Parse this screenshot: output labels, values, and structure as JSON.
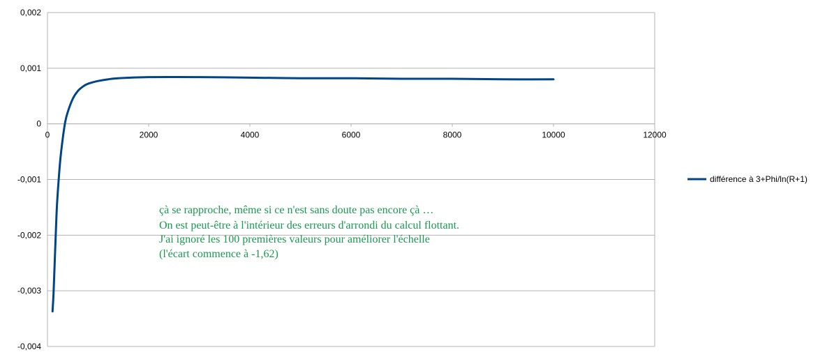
{
  "chart_data": {
    "type": "line",
    "title": "",
    "xlabel": "",
    "ylabel": "",
    "xlim": [
      0,
      12000
    ],
    "ylim": [
      -0.004,
      0.002
    ],
    "x_ticks": [
      0,
      2000,
      4000,
      6000,
      8000,
      10000,
      12000
    ],
    "x_tick_labels": [
      "0",
      "2000",
      "4000",
      "6000",
      "8000",
      "10000",
      "12000"
    ],
    "y_ticks": [
      0.002,
      0.001,
      0,
      -0.001,
      -0.002,
      -0.003,
      -0.004
    ],
    "y_tick_labels": [
      "0,002",
      "0,001",
      "0",
      "-0,001",
      "-0,002",
      "-0,003",
      "-0,004"
    ],
    "grid": true,
    "legend_position": "right",
    "series": [
      {
        "name": "différence à 3+Phi/ln(R+1)",
        "color": "#004586",
        "x": [
          100,
          120,
          150,
          180,
          200,
          250,
          300,
          350,
          400,
          500,
          600,
          700,
          800,
          1000,
          1200,
          1400,
          2000,
          3000,
          4000,
          5000,
          6000,
          7000,
          8000,
          9000,
          10000
        ],
        "y": [
          -0.00337,
          -0.00305,
          -0.00232,
          -0.00161,
          -0.00128,
          -0.00068,
          -0.00028,
          3e-05,
          0.00021,
          0.00045,
          0.00059,
          0.00067,
          0.00072,
          0.00077,
          0.0008,
          0.00082,
          0.00084,
          0.00084,
          0.00083,
          0.00082,
          0.00082,
          0.00081,
          0.00081,
          0.0008,
          0.0008
        ]
      }
    ],
    "annotations": [
      "çà se rapproche, même si ce n'est sans doute pas encore çà …",
      "On est peut-être à l'intérieur des erreurs d'arrondi du calcul flottant.",
      "J'ai ignoré les 100 premières valeurs pour améliorer l'échelle",
      "(l'écart commence à -1,62)"
    ],
    "annotation_color": "#1a9850",
    "grid_color": "#b3b3b3"
  }
}
